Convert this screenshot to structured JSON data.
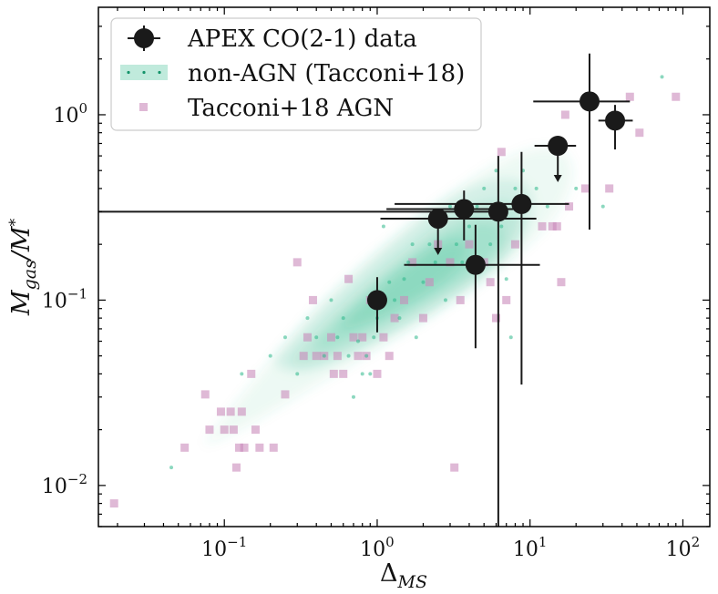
{
  "chart_data": {
    "type": "scatter",
    "xscale": "log",
    "yscale": "log",
    "xlim": [
      0.015,
      150
    ],
    "ylim": [
      0.006,
      3.8
    ],
    "xlabel": {
      "main": "Δ",
      "sub": "MS"
    },
    "ylabel": {
      "main": "M",
      "sub": "gas",
      "mid": "/M",
      "sup": "*"
    },
    "xticks": [
      {
        "value": 0.1,
        "base": "10",
        "exp": "−1"
      },
      {
        "value": 1,
        "base": "10",
        "exp": "0"
      },
      {
        "value": 10,
        "base": "10",
        "exp": "1"
      },
      {
        "value": 100,
        "base": "10",
        "exp": "2"
      }
    ],
    "yticks": [
      {
        "value": 0.01,
        "base": "10",
        "exp": "−2"
      },
      {
        "value": 0.1,
        "base": "10",
        "exp": "−1"
      },
      {
        "value": 1,
        "base": "10",
        "exp": "0"
      }
    ],
    "legend": {
      "position": "top-left",
      "entries": [
        {
          "label": "APEX CO(2-1) data",
          "marker": "black-circle-errorbar"
        },
        {
          "label": "non-AGN (Tacconi+18)",
          "marker": "green-density"
        },
        {
          "label": "Tacconi+18 AGN",
          "marker": "pink-square"
        }
      ]
    },
    "colors": {
      "apex": "#1a1a1a",
      "nonagn": "#2db88a",
      "agn": "#c98bbb"
    },
    "series": [
      {
        "name": "APEX CO(2-1) data",
        "points": [
          {
            "x": 1.0,
            "y": 0.1,
            "xerr": [
              0,
              0
            ],
            "yerr": [
              0.033,
              0.033
            ],
            "upper_limit": false
          },
          {
            "x": 2.5,
            "y": 0.275,
            "xerr": [
              1.45,
              8.5
            ],
            "yerr": [
              0,
              0
            ],
            "upper_limit": true
          },
          {
            "x": 3.7,
            "y": 0.31,
            "xerr": [
              2.55,
              4.8
            ],
            "yerr": [
              0.1,
              0.08
            ],
            "upper_limit": false
          },
          {
            "x": 4.4,
            "y": 0.155,
            "xerr": [
              2.9,
              7.2
            ],
            "yerr": [
              0.1,
              0.1
            ],
            "upper_limit": false
          },
          {
            "x": 6.2,
            "y": 0.3,
            "xerr": [
              6.185,
              0
            ],
            "yerr": [
              0.295,
              0.3
            ],
            "upper_limit": false
          },
          {
            "x": 8.8,
            "y": 0.33,
            "xerr": [
              7.5,
              9.2
            ],
            "yerr": [
              0.295,
              0.3
            ],
            "upper_limit": false
          },
          {
            "x": 15.2,
            "y": 0.68,
            "xerr": [
              4.5,
              4.8
            ],
            "yerr": [
              0,
              0
            ],
            "upper_limit": true
          },
          {
            "x": 24.5,
            "y": 1.18,
            "xerr": [
              14.0,
              20.5
            ],
            "yerr": [
              0.94,
              0.96
            ],
            "upper_limit": false
          },
          {
            "x": 36.0,
            "y": 0.93,
            "xerr": [
              8.0,
              11.0
            ],
            "yerr": [
              0.28,
              0.2
            ],
            "upper_limit": false
          }
        ]
      },
      {
        "name": "Tacconi+18 AGN",
        "points": [
          [
            0.019,
            0.008
          ],
          [
            0.055,
            0.016
          ],
          [
            0.075,
            0.031
          ],
          [
            0.08,
            0.02
          ],
          [
            0.095,
            0.025
          ],
          [
            0.1,
            0.02
          ],
          [
            0.11,
            0.025
          ],
          [
            0.115,
            0.02
          ],
          [
            0.12,
            0.0125
          ],
          [
            0.125,
            0.016
          ],
          [
            0.13,
            0.025
          ],
          [
            0.135,
            0.016
          ],
          [
            0.15,
            0.04
          ],
          [
            0.16,
            0.02
          ],
          [
            0.17,
            0.016
          ],
          [
            0.21,
            0.016
          ],
          [
            0.25,
            0.031
          ],
          [
            0.3,
            0.16
          ],
          [
            0.33,
            0.05
          ],
          [
            0.35,
            0.063
          ],
          [
            0.38,
            0.1
          ],
          [
            0.4,
            0.05
          ],
          [
            0.45,
            0.05
          ],
          [
            0.5,
            0.063
          ],
          [
            0.52,
            0.04
          ],
          [
            0.55,
            0.05
          ],
          [
            0.6,
            0.04
          ],
          [
            0.65,
            0.13
          ],
          [
            0.7,
            0.063
          ],
          [
            0.75,
            0.05
          ],
          [
            0.8,
            0.063
          ],
          [
            0.85,
            0.05
          ],
          [
            0.9,
            0.1
          ],
          [
            1.0,
            0.04
          ],
          [
            1.1,
            0.063
          ],
          [
            1.2,
            0.05
          ],
          [
            1.3,
            0.08
          ],
          [
            1.5,
            0.1
          ],
          [
            1.7,
            0.16
          ],
          [
            2.0,
            0.08
          ],
          [
            2.2,
            0.125
          ],
          [
            2.5,
            0.2
          ],
          [
            3.0,
            0.16
          ],
          [
            3.2,
            0.0125
          ],
          [
            3.5,
            0.1
          ],
          [
            4.0,
            0.2
          ],
          [
            5.0,
            0.16
          ],
          [
            5.5,
            0.125
          ],
          [
            6.0,
            0.08
          ],
          [
            6.5,
            0.63
          ],
          [
            7.0,
            0.1
          ],
          [
            8.0,
            0.2
          ],
          [
            12.0,
            0.25
          ],
          [
            14.0,
            0.25
          ],
          [
            15.0,
            0.25
          ],
          [
            16.0,
            0.125
          ],
          [
            17.0,
            1.0
          ],
          [
            18.0,
            0.32
          ],
          [
            23.0,
            0.4
          ],
          [
            33.0,
            0.4
          ],
          [
            45.0,
            1.25
          ],
          [
            52.0,
            0.8
          ],
          [
            90.0,
            1.25
          ]
        ]
      },
      {
        "name": "non-AGN (Tacconi+18)",
        "points": [
          [
            0.045,
            0.0125
          ],
          [
            0.13,
            0.04
          ],
          [
            0.2,
            0.05
          ],
          [
            0.25,
            0.063
          ],
          [
            0.3,
            0.04
          ],
          [
            0.35,
            0.08
          ],
          [
            0.4,
            0.063
          ],
          [
            0.45,
            0.05
          ],
          [
            0.5,
            0.1
          ],
          [
            0.55,
            0.063
          ],
          [
            0.6,
            0.08
          ],
          [
            0.65,
            0.05
          ],
          [
            0.7,
            0.03
          ],
          [
            0.75,
            0.06
          ],
          [
            0.8,
            0.04
          ],
          [
            0.85,
            0.05
          ],
          [
            0.9,
            0.04
          ],
          [
            0.95,
            0.063
          ],
          [
            1.0,
            0.08
          ],
          [
            1.05,
            0.1
          ],
          [
            1.1,
            0.25
          ],
          [
            1.2,
            0.125
          ],
          [
            1.3,
            0.1
          ],
          [
            1.4,
            0.08
          ],
          [
            1.5,
            0.13
          ],
          [
            1.6,
            0.16
          ],
          [
            1.7,
            0.2
          ],
          [
            1.8,
            0.063
          ],
          [
            2.0,
            0.125
          ],
          [
            2.2,
            0.2
          ],
          [
            2.4,
            0.16
          ],
          [
            2.6,
            0.25
          ],
          [
            2.8,
            0.1
          ],
          [
            3.0,
            0.32
          ],
          [
            3.3,
            0.2
          ],
          [
            3.6,
            0.16
          ],
          [
            4.0,
            0.25
          ],
          [
            4.5,
            0.32
          ],
          [
            5.0,
            0.4
          ],
          [
            5.5,
            0.2
          ],
          [
            6.0,
            0.5
          ],
          [
            6.5,
            0.25
          ],
          [
            7.0,
            0.13
          ],
          [
            7.5,
            0.063
          ],
          [
            8.0,
            0.4
          ],
          [
            9.0,
            0.5
          ],
          [
            11.0,
            0.4
          ],
          [
            13.0,
            0.32
          ],
          [
            20.0,
            0.4
          ],
          [
            30.0,
            0.32
          ],
          [
            73.0,
            1.6
          ]
        ]
      }
    ]
  }
}
